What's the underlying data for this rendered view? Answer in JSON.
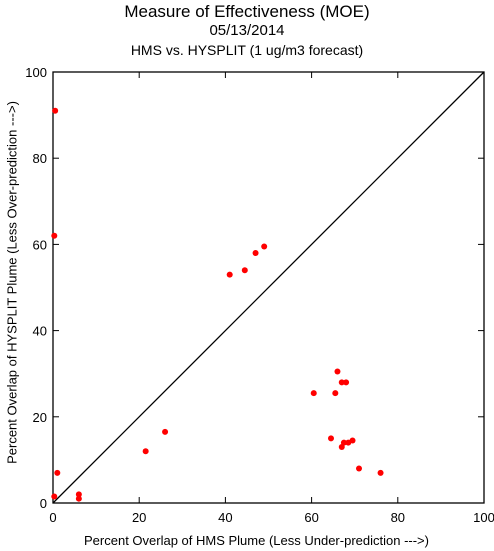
{
  "chart_data": {
    "type": "scatter",
    "title": "Measure of Effectiveness (MOE)",
    "subtitle": "05/13/2014",
    "subtitle2": "HMS vs. HYSPLIT  (1 ug/m3 forecast)",
    "xlabel": "Percent Overlap of HMS Plume (Less Under-prediction --->)",
    "ylabel": "Percent Overlap of HYSPLIT Plume (Less Over-prediction --->)",
    "xlim": [
      0,
      100
    ],
    "ylim": [
      0,
      100
    ],
    "x_ticks": [
      0,
      20,
      40,
      60,
      80,
      100
    ],
    "y_ticks": [
      0,
      20,
      40,
      60,
      80,
      100
    ],
    "reference_line": "y = x",
    "grid": false,
    "marker_color": "#ff0000",
    "points": [
      {
        "x": 0.5,
        "y": 91
      },
      {
        "x": 0.3,
        "y": 62
      },
      {
        "x": 1.0,
        "y": 7
      },
      {
        "x": 0.3,
        "y": 1.5
      },
      {
        "x": 6.0,
        "y": 2
      },
      {
        "x": 6.0,
        "y": 1
      },
      {
        "x": 21.5,
        "y": 12
      },
      {
        "x": 26.0,
        "y": 16.5
      },
      {
        "x": 41.0,
        "y": 53
      },
      {
        "x": 44.5,
        "y": 54
      },
      {
        "x": 47.0,
        "y": 58
      },
      {
        "x": 49.0,
        "y": 59.5
      },
      {
        "x": 60.5,
        "y": 25.5
      },
      {
        "x": 64.5,
        "y": 15
      },
      {
        "x": 65.5,
        "y": 25.5
      },
      {
        "x": 66.0,
        "y": 30.5
      },
      {
        "x": 67.0,
        "y": 28
      },
      {
        "x": 68.0,
        "y": 28
      },
      {
        "x": 67.0,
        "y": 13
      },
      {
        "x": 67.5,
        "y": 14
      },
      {
        "x": 68.5,
        "y": 14
      },
      {
        "x": 69.5,
        "y": 14.5
      },
      {
        "x": 71.0,
        "y": 8
      },
      {
        "x": 76.0,
        "y": 7
      }
    ]
  }
}
